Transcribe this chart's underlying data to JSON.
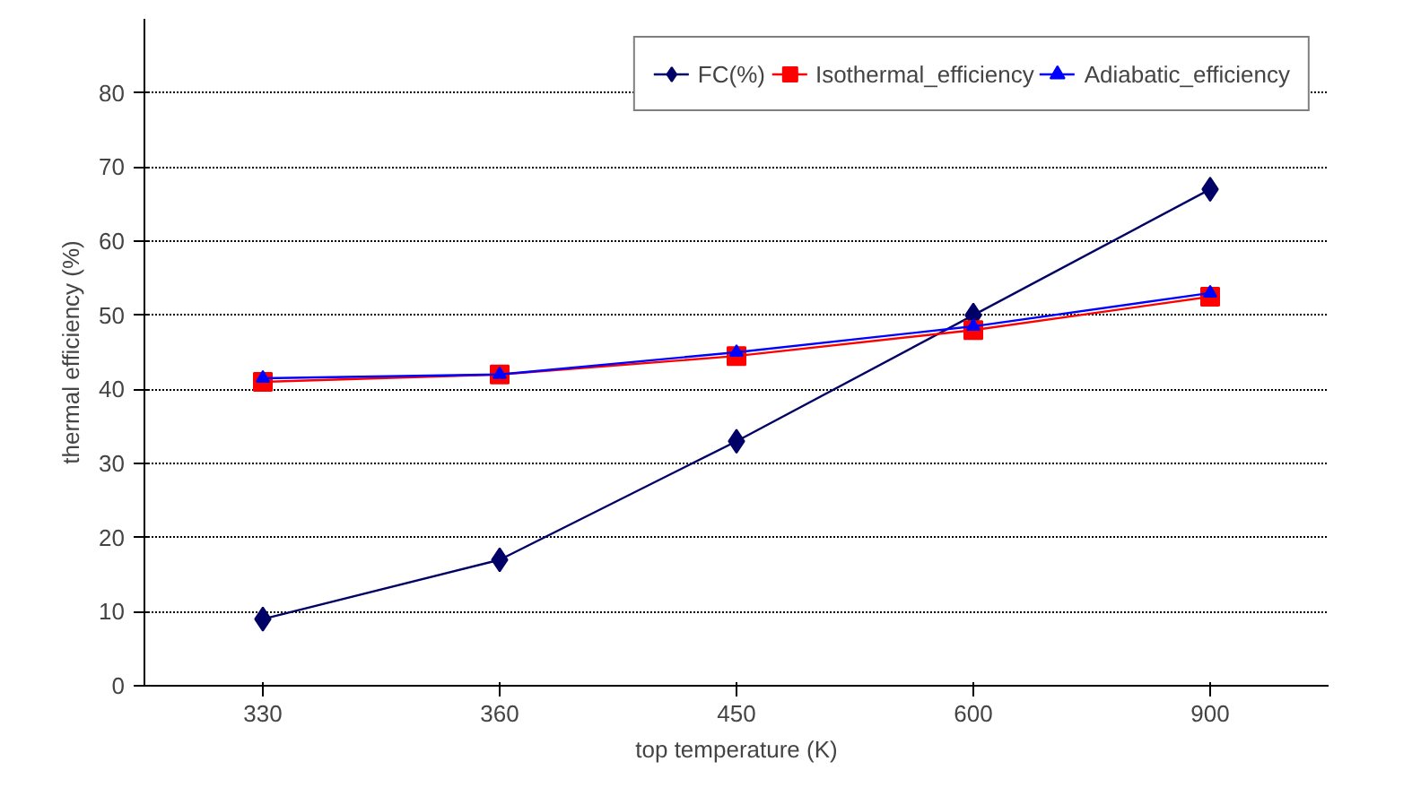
{
  "chart_data": {
    "type": "line",
    "xlabel": "top temperature (K)",
    "ylabel": "thermal efficiency (%)",
    "categories": [
      "330",
      "360",
      "450",
      "600",
      "900"
    ],
    "ylim": [
      0,
      90
    ],
    "yticks": [
      0,
      10,
      20,
      30,
      40,
      50,
      60,
      70,
      80
    ],
    "grid": "y",
    "legend": "top right",
    "series": [
      {
        "name": "FC(%)",
        "color": "#000066",
        "marker": "diamond",
        "values": [
          9,
          17,
          33,
          50,
          67
        ]
      },
      {
        "name": "Isothermal_efficiency",
        "color": "#ff0000",
        "marker": "square",
        "values": [
          41,
          42,
          44.5,
          48,
          52.5
        ]
      },
      {
        "name": "Adiabatic_efficiency",
        "color": "#0000ff",
        "marker": "triangle",
        "values": [
          41.5,
          42,
          45,
          48.5,
          53
        ]
      }
    ]
  }
}
